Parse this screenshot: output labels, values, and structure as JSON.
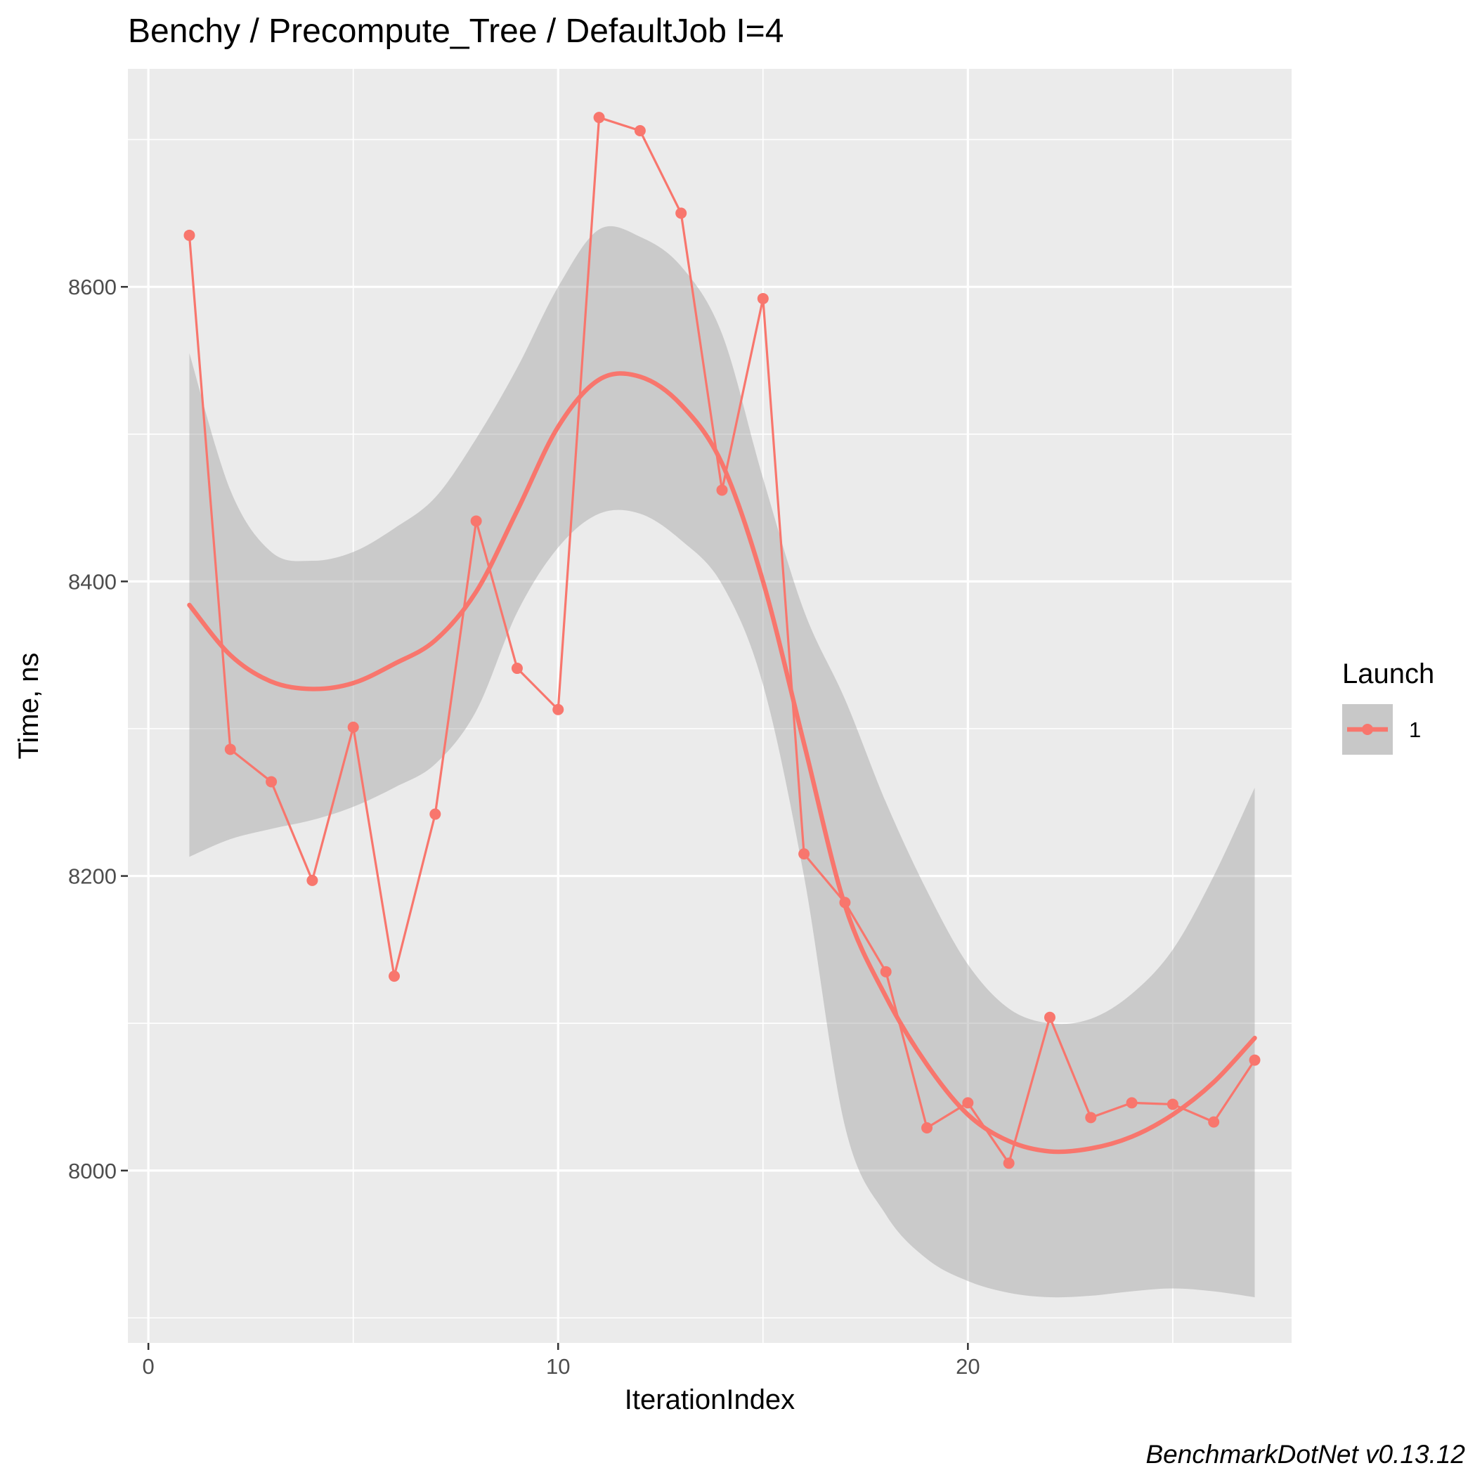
{
  "chart_data": {
    "type": "line",
    "title": "Benchy / Precompute_Tree / DefaultJob I=4",
    "xlabel": "IterationIndex",
    "ylabel": "Time, ns",
    "caption": "BenchmarkDotNet v0.13.12",
    "xlim": [
      -0.5,
      27.9
    ],
    "ylim": [
      7883,
      8748
    ],
    "x_ticks": [
      0,
      10,
      20
    ],
    "x_minor_ticks": [
      5,
      15,
      25
    ],
    "y_ticks": [
      8000,
      8200,
      8400,
      8600
    ],
    "y_minor_ticks": [
      7900,
      8100,
      8300,
      8500,
      8700
    ],
    "grid": true,
    "legend": {
      "title": "Launch",
      "position": "right",
      "entries": [
        "1"
      ]
    },
    "colors": {
      "series": "#F8766D",
      "panel": "#EBEBEB",
      "band": "#C8C8C8",
      "grid": "#FFFFFF"
    },
    "series": [
      {
        "name": "1",
        "x": [
          1,
          2,
          3,
          4,
          5,
          6,
          7,
          8,
          9,
          10,
          11,
          12,
          13,
          14,
          15,
          16,
          17,
          18,
          19,
          20,
          21,
          22,
          23,
          24,
          25,
          26,
          27
        ],
        "values": [
          8635,
          8286,
          8264,
          8197,
          8301,
          8132,
          8242,
          8441,
          8341,
          8313,
          8715,
          8706,
          8650,
          8462,
          8592,
          8215,
          8182,
          8135,
          8029,
          8046,
          8005,
          8104,
          8036,
          8046,
          8045,
          8033,
          8075
        ]
      }
    ],
    "smooth": {
      "x": [
        1,
        2,
        3,
        4,
        5,
        6,
        7,
        8,
        9,
        10,
        11,
        12,
        13,
        14,
        15,
        16,
        17,
        18,
        19,
        20,
        21,
        22,
        23,
        24,
        25,
        26,
        27
      ],
      "fit": [
        8384,
        8350,
        8332,
        8327,
        8331,
        8344,
        8360,
        8393,
        8448,
        8505,
        8537,
        8539,
        8520,
        8480,
        8400,
        8290,
        8180,
        8118,
        8072,
        8038,
        8020,
        8013,
        8015,
        8023,
        8038,
        8060,
        8090
      ],
      "lower": [
        8213,
        8225,
        8232,
        8238,
        8247,
        8260,
        8276,
        8312,
        8379,
        8423,
        8446,
        8446,
        8428,
        8398,
        8330,
        8200,
        8030,
        7970,
        7940,
        7925,
        7917,
        7914,
        7915,
        7918,
        7920,
        7918,
        7914
      ],
      "upper": [
        8555,
        8462,
        8420,
        8414,
        8420,
        8436,
        8457,
        8497,
        8545,
        8600,
        8639,
        8634,
        8614,
        8568,
        8470,
        8380,
        8320,
        8250,
        8190,
        8140,
        8110,
        8100,
        8103,
        8120,
        8150,
        8200,
        8260
      ]
    }
  }
}
